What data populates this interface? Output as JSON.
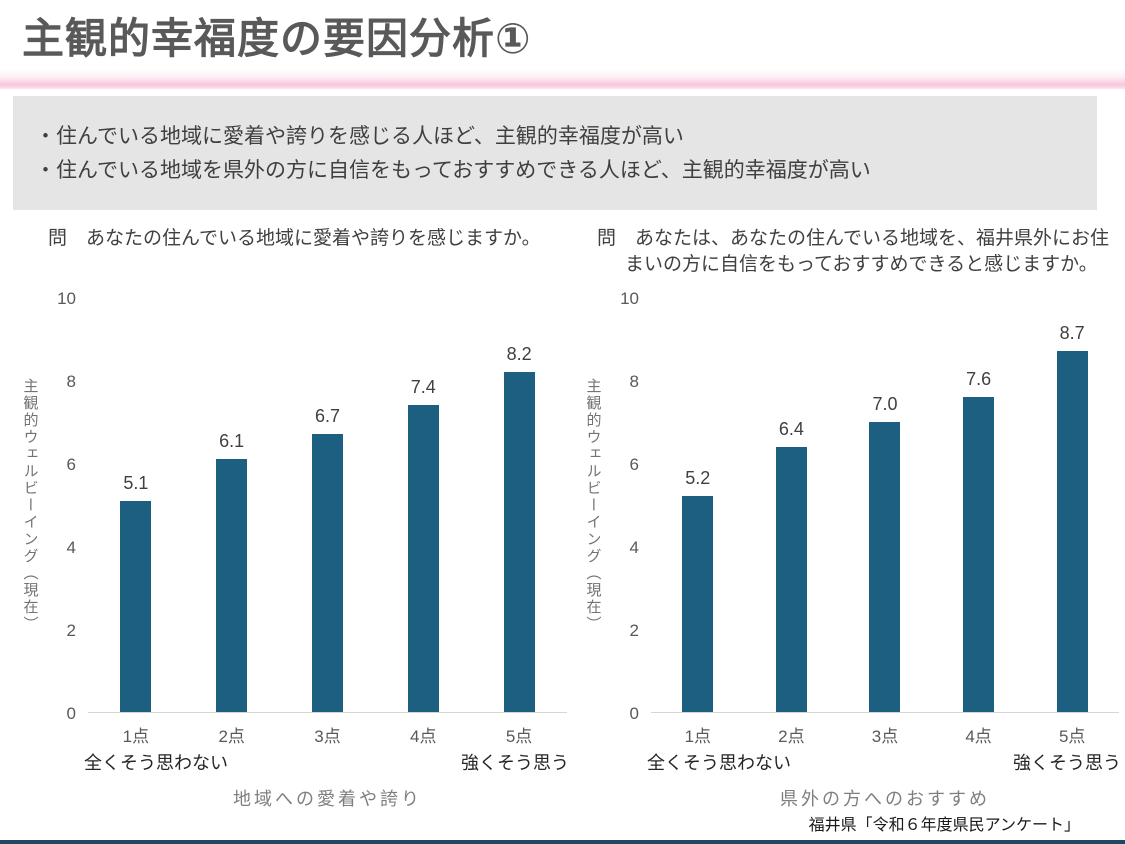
{
  "page": {
    "title": "主観的幸福度の要因分析①",
    "summary_lines": [
      "・住んでいる地域に愛着や誇りを感じる人ほど、主観的幸福度が高い",
      "・住んでいる地域を県外の方に自信をもっておすすめできる人ほど、主観的幸福度が高い"
    ],
    "source": "福井県「令和６年度県民アンケート」"
  },
  "colors": {
    "bar": "#1d5f80",
    "accent_pink": "#f8c9de",
    "footer_bar": "#1f4863",
    "summary_bg": "#e5e5e5",
    "title_text": "#595959"
  },
  "chart_data": [
    {
      "type": "bar",
      "question": "問　あなたの住んでいる地域に愛着や誇りを感じますか。",
      "categories": [
        "1点",
        "2点",
        "3点",
        "4点",
        "5点"
      ],
      "values": [
        5.1,
        6.1,
        6.7,
        7.4,
        8.2
      ],
      "xlabel": "地域への愛着や誇り",
      "ylabel": "主観的ウェルビーイング（現在）",
      "ylim": [
        0,
        10
      ],
      "yticks": [
        0,
        2,
        4,
        6,
        8,
        10
      ],
      "first_category_note": "全くそう思わない",
      "last_category_note": "強くそう思う",
      "grid": false,
      "legend": false
    },
    {
      "type": "bar",
      "question": "問　あなたは、あなたの住んでいる地域を、福井県外にお住まいの方に自信をもっておすすめできると感じますか。",
      "categories": [
        "1点",
        "2点",
        "3点",
        "4点",
        "5点"
      ],
      "values": [
        5.2,
        6.4,
        7.0,
        7.6,
        8.7
      ],
      "xlabel": "県外の方へのおすすめ",
      "ylabel": "主観的ウェルビーイング（現在）",
      "ylim": [
        0,
        10
      ],
      "yticks": [
        0,
        2,
        4,
        6,
        8,
        10
      ],
      "first_category_note": "全くそう思わない",
      "last_category_note": "強くそう思う",
      "grid": false,
      "legend": false
    }
  ]
}
